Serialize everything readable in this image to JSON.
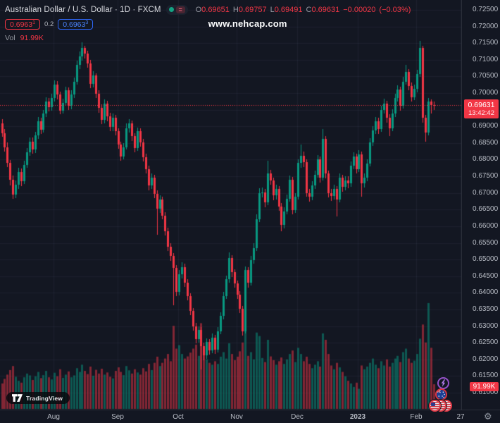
{
  "header": {
    "title": "Australian Dollar / U.S. Dollar · 1D · FXCM",
    "ohlc": {
      "o_label": "O",
      "o": "0.69651",
      "h_label": "H",
      "h": "0.69757",
      "l_label": "L",
      "l": "0.69491",
      "c_label": "C",
      "c": "0.69631",
      "change": "−0.00020",
      "change_pct": "(−0.03%)"
    },
    "bid": {
      "value": "0.6963",
      "sup": "1"
    },
    "spread": "0.2",
    "ask": {
      "value": "0.6963",
      "sup": "3"
    },
    "vol_label": "Vol",
    "vol_value": "91.99K"
  },
  "watermark": "www.nehcap.com",
  "branding": {
    "logo_text": "TradingView"
  },
  "icons": {
    "gear_glyph": "⚙",
    "pause_glyph": "="
  },
  "price_axis": {
    "ticks": [
      "0.72500",
      "0.72000",
      "0.71500",
      "0.71000",
      "0.70500",
      "0.70000",
      "0.69500",
      "0.69000",
      "0.68500",
      "0.68000",
      "0.67500",
      "0.67000",
      "0.66500",
      "0.66000",
      "0.65500",
      "0.65000",
      "0.64500",
      "0.64000",
      "0.63500",
      "0.63000",
      "0.62500",
      "0.62000",
      "0.61500",
      "0.61000"
    ],
    "last_price_label": "0.69631",
    "countdown": "13:42:42",
    "volume_label": "91.99K"
  },
  "time_axis": {
    "ticks": [
      {
        "label": "Aug",
        "index": 19
      },
      {
        "label": "Sep",
        "index": 42
      },
      {
        "label": "Oct",
        "index": 64
      },
      {
        "label": "Nov",
        "index": 85
      },
      {
        "label": "Dec",
        "index": 107
      },
      {
        "label": "2023",
        "index": 129,
        "year": true
      },
      {
        "label": "Feb",
        "index": 150
      },
      {
        "label": "27",
        "index": 166
      }
    ]
  },
  "colors": {
    "background": "#131722",
    "grid": "rgba(99,110,134,0.12)",
    "up": "#089981",
    "down": "#f23645",
    "axis_text": "#b8bcc5",
    "accent_blue": "#2962ff",
    "badge": "#f23645"
  },
  "chart_data": {
    "type": "candlestick+volume",
    "symbol": "AUD/USD",
    "timeframe": "1D",
    "exchange": "FXCM",
    "title": "Australian Dollar / U.S. Dollar",
    "price_range": [
      0.61,
      0.725
    ],
    "grid_step": 0.005,
    "last_price": 0.69631,
    "last_volume_k": 91.99,
    "volume_max_k": 400,
    "legend_note": "candles are [open, high, low, close, volume_k]",
    "candles": [
      [
        0.691,
        0.6922,
        0.6868,
        0.688,
        95
      ],
      [
        0.688,
        0.6892,
        0.6825,
        0.6838,
        112
      ],
      [
        0.6838,
        0.6851,
        0.6778,
        0.679,
        128
      ],
      [
        0.679,
        0.6799,
        0.6722,
        0.674,
        145
      ],
      [
        0.674,
        0.6752,
        0.6682,
        0.6695,
        160
      ],
      [
        0.6695,
        0.6738,
        0.6684,
        0.6725,
        120
      ],
      [
        0.6725,
        0.6775,
        0.6713,
        0.6762,
        105
      ],
      [
        0.6762,
        0.6773,
        0.6721,
        0.6735,
        98
      ],
      [
        0.6735,
        0.6796,
        0.6727,
        0.6785,
        118
      ],
      [
        0.6785,
        0.6834,
        0.6776,
        0.6822,
        132
      ],
      [
        0.6822,
        0.6867,
        0.6812,
        0.6855,
        125
      ],
      [
        0.6855,
        0.6866,
        0.6818,
        0.683,
        108
      ],
      [
        0.683,
        0.6884,
        0.6821,
        0.6872,
        122
      ],
      [
        0.6872,
        0.6928,
        0.6863,
        0.6915,
        138
      ],
      [
        0.6915,
        0.6926,
        0.6877,
        0.689,
        115
      ],
      [
        0.689,
        0.695,
        0.6881,
        0.6938,
        126
      ],
      [
        0.6938,
        0.6988,
        0.6928,
        0.6975,
        142
      ],
      [
        0.6975,
        0.6986,
        0.6945,
        0.6958,
        118
      ],
      [
        0.6958,
        0.6998,
        0.6948,
        0.6985,
        110
      ],
      [
        0.6985,
        0.7038,
        0.6975,
        0.7025,
        135
      ],
      [
        0.7025,
        0.7036,
        0.6982,
        0.6995,
        122
      ],
      [
        0.6995,
        0.7004,
        0.6936,
        0.6948,
        148
      ],
      [
        0.6948,
        0.6983,
        0.6938,
        0.697,
        116
      ],
      [
        0.697,
        0.702,
        0.6961,
        0.7008,
        128
      ],
      [
        0.7008,
        0.7017,
        0.695,
        0.6962,
        140
      ],
      [
        0.6962,
        0.7008,
        0.6952,
        0.6995,
        118
      ],
      [
        0.6995,
        0.7047,
        0.6985,
        0.7035,
        125
      ],
      [
        0.7035,
        0.7098,
        0.7026,
        0.7085,
        152
      ],
      [
        0.7085,
        0.7125,
        0.7072,
        0.711,
        138
      ],
      [
        0.711,
        0.7152,
        0.7098,
        0.7135,
        165
      ],
      [
        0.7135,
        0.7143,
        0.7104,
        0.7118,
        142
      ],
      [
        0.7118,
        0.7128,
        0.7076,
        0.709,
        130
      ],
      [
        0.709,
        0.7099,
        0.7015,
        0.7028,
        158
      ],
      [
        0.7028,
        0.7065,
        0.7016,
        0.7052,
        124
      ],
      [
        0.7052,
        0.706,
        0.6986,
        0.6998,
        146
      ],
      [
        0.6998,
        0.7008,
        0.6941,
        0.6955,
        132
      ],
      [
        0.6955,
        0.6966,
        0.6906,
        0.692,
        150
      ],
      [
        0.692,
        0.698,
        0.691,
        0.6968,
        128
      ],
      [
        0.6968,
        0.6977,
        0.6916,
        0.693,
        136
      ],
      [
        0.693,
        0.694,
        0.6885,
        0.6898,
        120
      ],
      [
        0.6898,
        0.6938,
        0.6886,
        0.6925,
        114
      ],
      [
        0.6925,
        0.6934,
        0.6872,
        0.6885,
        142
      ],
      [
        0.6885,
        0.6895,
        0.6832,
        0.6845,
        155
      ],
      [
        0.6845,
        0.6855,
        0.6796,
        0.681,
        138
      ],
      [
        0.681,
        0.685,
        0.68,
        0.6838,
        126
      ],
      [
        0.6838,
        0.6908,
        0.683,
        0.6895,
        160
      ],
      [
        0.6895,
        0.6922,
        0.6882,
        0.6908,
        144
      ],
      [
        0.6908,
        0.6917,
        0.6856,
        0.687,
        132
      ],
      [
        0.687,
        0.688,
        0.6822,
        0.6835,
        148
      ],
      [
        0.6835,
        0.6897,
        0.6826,
        0.6885,
        136
      ],
      [
        0.6885,
        0.6894,
        0.684,
        0.6852,
        128
      ],
      [
        0.6852,
        0.6862,
        0.6795,
        0.6808,
        152
      ],
      [
        0.6808,
        0.6818,
        0.6758,
        0.6772,
        140
      ],
      [
        0.6772,
        0.6781,
        0.6708,
        0.6722,
        168
      ],
      [
        0.6722,
        0.6758,
        0.6712,
        0.6745,
        145
      ],
      [
        0.6745,
        0.6754,
        0.6685,
        0.6698,
        172
      ],
      [
        0.6698,
        0.6707,
        0.6574,
        0.6652,
        195
      ],
      [
        0.6652,
        0.6692,
        0.6641,
        0.668,
        160
      ],
      [
        0.668,
        0.6689,
        0.662,
        0.6632,
        172
      ],
      [
        0.6632,
        0.6642,
        0.6572,
        0.6585,
        188
      ],
      [
        0.6585,
        0.6595,
        0.6525,
        0.6538,
        205
      ],
      [
        0.6538,
        0.6549,
        0.6497,
        0.651,
        178
      ],
      [
        0.651,
        0.6519,
        0.6363,
        0.6475,
        310
      ],
      [
        0.6475,
        0.6484,
        0.639,
        0.6402,
        225
      ],
      [
        0.6402,
        0.6468,
        0.6392,
        0.6455,
        238
      ],
      [
        0.6455,
        0.6492,
        0.6443,
        0.6478,
        205
      ],
      [
        0.6478,
        0.6487,
        0.6417,
        0.643,
        188
      ],
      [
        0.643,
        0.644,
        0.6377,
        0.639,
        196
      ],
      [
        0.639,
        0.6399,
        0.6332,
        0.6345,
        210
      ],
      [
        0.6345,
        0.6355,
        0.6287,
        0.63,
        225
      ],
      [
        0.63,
        0.631,
        0.6249,
        0.6262,
        240
      ],
      [
        0.6262,
        0.63,
        0.6251,
        0.6288,
        198
      ],
      [
        0.6288,
        0.6297,
        0.617,
        0.624,
        320
      ],
      [
        0.624,
        0.625,
        0.6198,
        0.6212,
        215
      ],
      [
        0.6212,
        0.6264,
        0.6202,
        0.6252,
        185
      ],
      [
        0.6252,
        0.6262,
        0.6215,
        0.6228,
        172
      ],
      [
        0.6228,
        0.6277,
        0.6218,
        0.6265,
        165
      ],
      [
        0.6265,
        0.6274,
        0.6217,
        0.623,
        178
      ],
      [
        0.623,
        0.6296,
        0.6221,
        0.6285,
        168
      ],
      [
        0.6285,
        0.6342,
        0.6276,
        0.633,
        195
      ],
      [
        0.633,
        0.6402,
        0.6321,
        0.639,
        212
      ],
      [
        0.639,
        0.6452,
        0.6381,
        0.644,
        188
      ],
      [
        0.644,
        0.6522,
        0.6431,
        0.6505,
        245
      ],
      [
        0.6505,
        0.6514,
        0.6448,
        0.6462,
        205
      ],
      [
        0.6462,
        0.6471,
        0.6415,
        0.6428,
        182
      ],
      [
        0.6428,
        0.6437,
        0.6382,
        0.6395,
        195
      ],
      [
        0.6395,
        0.6404,
        0.6339,
        0.6352,
        215
      ],
      [
        0.6352,
        0.6361,
        0.6272,
        0.6285,
        248
      ],
      [
        0.6285,
        0.648,
        0.6278,
        0.6468,
        300
      ],
      [
        0.6468,
        0.6477,
        0.6416,
        0.643,
        198
      ],
      [
        0.643,
        0.651,
        0.6421,
        0.6498,
        212
      ],
      [
        0.6498,
        0.6548,
        0.6487,
        0.6535,
        185
      ],
      [
        0.6535,
        0.6635,
        0.6526,
        0.6622,
        285
      ],
      [
        0.6622,
        0.6714,
        0.6613,
        0.67,
        272
      ],
      [
        0.67,
        0.6717,
        0.6686,
        0.6702,
        190
      ],
      [
        0.6702,
        0.6712,
        0.6658,
        0.6672,
        175
      ],
      [
        0.6672,
        0.6797,
        0.6663,
        0.6758,
        258
      ],
      [
        0.6758,
        0.677,
        0.6724,
        0.6738,
        196
      ],
      [
        0.6738,
        0.6747,
        0.6678,
        0.6692,
        182
      ],
      [
        0.6692,
        0.6725,
        0.6681,
        0.6712,
        165
      ],
      [
        0.6712,
        0.6721,
        0.6646,
        0.666,
        178
      ],
      [
        0.666,
        0.6669,
        0.6585,
        0.6603,
        192
      ],
      [
        0.6603,
        0.6657,
        0.6594,
        0.6645,
        168
      ],
      [
        0.6645,
        0.6695,
        0.6635,
        0.6682,
        185
      ],
      [
        0.6682,
        0.6752,
        0.6673,
        0.674,
        205
      ],
      [
        0.674,
        0.6748,
        0.6636,
        0.6648,
        218
      ],
      [
        0.6648,
        0.67,
        0.6639,
        0.6688,
        175
      ],
      [
        0.6688,
        0.6802,
        0.668,
        0.679,
        228
      ],
      [
        0.679,
        0.6845,
        0.6776,
        0.6812,
        205
      ],
      [
        0.6812,
        0.6824,
        0.6778,
        0.6792,
        178
      ],
      [
        0.6792,
        0.68,
        0.6688,
        0.67,
        195
      ],
      [
        0.67,
        0.6712,
        0.6674,
        0.6688,
        168
      ],
      [
        0.6688,
        0.6735,
        0.6678,
        0.6722,
        152
      ],
      [
        0.6722,
        0.6768,
        0.6712,
        0.6755,
        165
      ],
      [
        0.6755,
        0.6813,
        0.6746,
        0.68,
        178
      ],
      [
        0.68,
        0.6809,
        0.6731,
        0.6745,
        158
      ],
      [
        0.6745,
        0.6893,
        0.6738,
        0.6862,
        282
      ],
      [
        0.6862,
        0.6871,
        0.6744,
        0.6758,
        258
      ],
      [
        0.6758,
        0.6767,
        0.6686,
        0.67,
        205
      ],
      [
        0.67,
        0.6713,
        0.6676,
        0.669,
        162
      ],
      [
        0.669,
        0.6725,
        0.6681,
        0.6712,
        148
      ],
      [
        0.6712,
        0.6721,
        0.6629,
        0.668,
        172
      ],
      [
        0.668,
        0.6758,
        0.6671,
        0.6745,
        155
      ],
      [
        0.6745,
        0.6754,
        0.6704,
        0.6718,
        138
      ],
      [
        0.6718,
        0.6751,
        0.6708,
        0.6738,
        122
      ],
      [
        0.6738,
        0.675,
        0.6714,
        0.6728,
        105
      ],
      [
        0.6728,
        0.6794,
        0.6719,
        0.6782,
        95
      ],
      [
        0.6782,
        0.6823,
        0.6772,
        0.681,
        82
      ],
      [
        0.681,
        0.6819,
        0.6758,
        0.6772,
        98
      ],
      [
        0.6772,
        0.6828,
        0.6763,
        0.6815,
        75
      ],
      [
        0.6815,
        0.6824,
        0.6688,
        0.6728,
        162
      ],
      [
        0.6728,
        0.6758,
        0.6716,
        0.6745,
        148
      ],
      [
        0.6745,
        0.68,
        0.6736,
        0.6788,
        158
      ],
      [
        0.6788,
        0.6865,
        0.6779,
        0.6852,
        172
      ],
      [
        0.6852,
        0.6901,
        0.6842,
        0.6888,
        188
      ],
      [
        0.6888,
        0.6929,
        0.6877,
        0.6915,
        165
      ],
      [
        0.6915,
        0.6925,
        0.6878,
        0.6892,
        152
      ],
      [
        0.6892,
        0.6963,
        0.6883,
        0.695,
        178
      ],
      [
        0.695,
        0.6984,
        0.6938,
        0.6968,
        162
      ],
      [
        0.6968,
        0.6977,
        0.6911,
        0.6925,
        185
      ],
      [
        0.6925,
        0.6936,
        0.6871,
        0.6895,
        158
      ],
      [
        0.6895,
        0.6951,
        0.6886,
        0.6938,
        172
      ],
      [
        0.6938,
        0.6998,
        0.6929,
        0.6985,
        188
      ],
      [
        0.6985,
        0.7024,
        0.6975,
        0.701,
        198
      ],
      [
        0.701,
        0.7019,
        0.6948,
        0.6962,
        175
      ],
      [
        0.6962,
        0.7048,
        0.6953,
        0.7035,
        212
      ],
      [
        0.7035,
        0.7085,
        0.7026,
        0.7063,
        225
      ],
      [
        0.7063,
        0.7072,
        0.7008,
        0.7022,
        188
      ],
      [
        0.7022,
        0.7031,
        0.6975,
        0.6988,
        172
      ],
      [
        0.6988,
        0.7025,
        0.6979,
        0.7012,
        180
      ],
      [
        0.7012,
        0.7071,
        0.7003,
        0.7058,
        205
      ],
      [
        0.7058,
        0.7157,
        0.7049,
        0.7135,
        262
      ],
      [
        0.7135,
        0.7143,
        0.6912,
        0.6925,
        315
      ],
      [
        0.6925,
        0.6934,
        0.6855,
        0.6882,
        248
      ],
      [
        0.6882,
        0.6985,
        0.6873,
        0.6975,
        395
      ],
      [
        0.6975,
        0.6981,
        0.6938,
        0.69651,
        228
      ],
      [
        0.69651,
        0.69757,
        0.69491,
        0.69631,
        92
      ]
    ]
  }
}
